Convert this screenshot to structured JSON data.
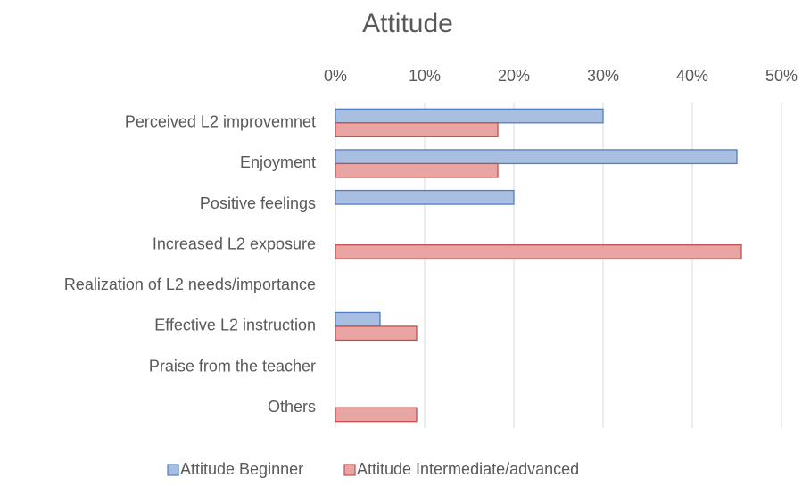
{
  "chart_data": {
    "type": "hbar",
    "title": "Attitude",
    "categories": [
      "Perceived L2 improvemnet",
      "Enjoyment",
      "Positive feelings",
      "Increased L2 exposure",
      "Realization of L2 needs/importance",
      "Effective L2 instruction",
      "Praise from the teacher",
      "Others"
    ],
    "series": [
      {
        "name": "Attitude Beginner",
        "color": "#a9bfe1",
        "stroke": "#4f7fc0",
        "values": [
          30,
          45,
          20,
          0,
          0,
          5,
          0,
          0
        ]
      },
      {
        "name": "Attitude Intermediate/advanced",
        "color": "#e8a5a4",
        "stroke": "#c0504d",
        "values": [
          18.2,
          18.2,
          0,
          45.5,
          0,
          9.1,
          0,
          9.1
        ]
      }
    ],
    "xlim": [
      0,
      50
    ],
    "xticks": [
      {
        "value": 0,
        "label": "0%"
      },
      {
        "value": 10,
        "label": "10%"
      },
      {
        "value": 20,
        "label": "20%"
      },
      {
        "value": 30,
        "label": "30%"
      },
      {
        "value": 40,
        "label": "40%"
      },
      {
        "value": 50,
        "label": "50%"
      }
    ],
    "grid": true,
    "legend": "bottom"
  }
}
